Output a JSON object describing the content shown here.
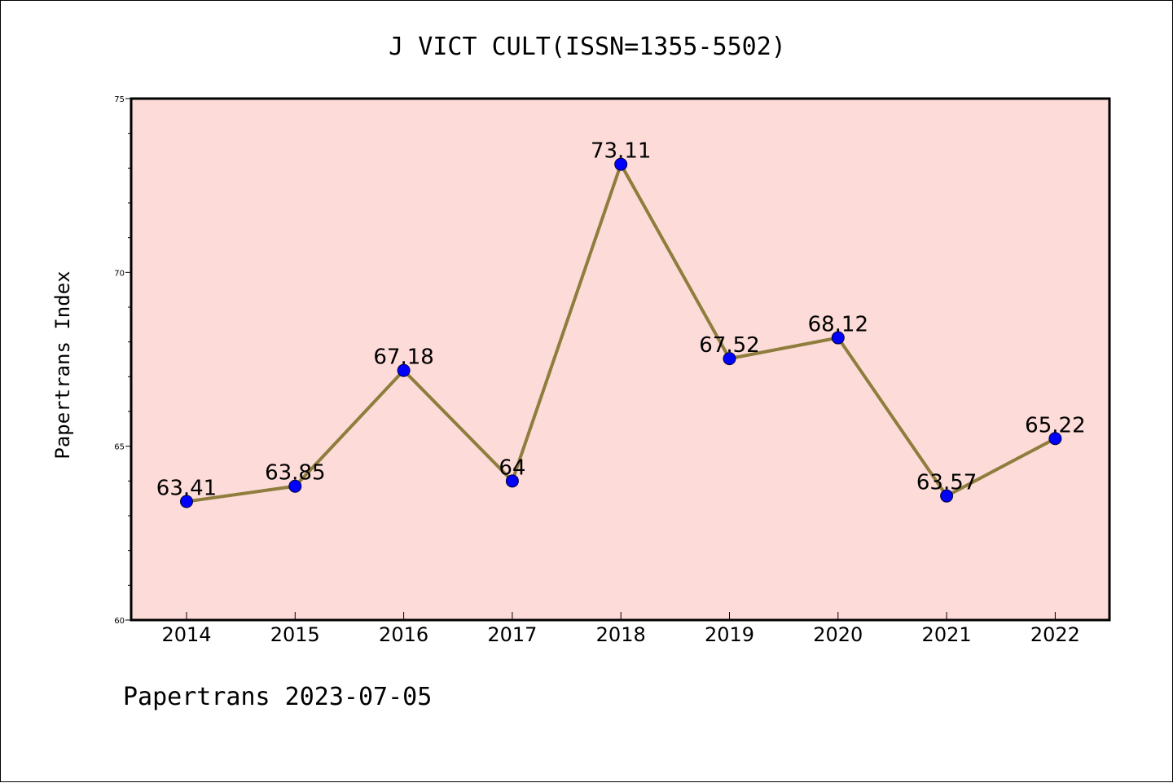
{
  "chart_data": {
    "type": "line",
    "title": "J VICT CULT(ISSN=1355-5502)",
    "ylabel": "Papertrans Index",
    "xlabel": "",
    "footer": "Papertrans 2023-07-05",
    "categories": [
      "2014",
      "2015",
      "2016",
      "2017",
      "2018",
      "2019",
      "2020",
      "2021",
      "2022"
    ],
    "values": [
      63.41,
      63.85,
      67.18,
      64,
      73.11,
      67.52,
      68.12,
      63.57,
      65.22
    ],
    "data_labels": [
      "63.41",
      "63.85",
      "67.18",
      "64",
      "73.11",
      "67.52",
      "68.12",
      "63.57",
      "65.22"
    ],
    "ylim": [
      60,
      75
    ],
    "yticks": [
      "60",
      "65",
      "70",
      "75"
    ],
    "grid": false,
    "colors": {
      "plot_background": "#fddbd8",
      "line": "#8f7d3d",
      "marker": "#0000ff"
    }
  }
}
